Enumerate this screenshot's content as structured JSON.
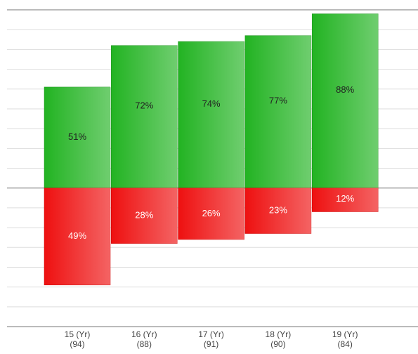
{
  "chart_data": {
    "type": "diverging-bar",
    "categories": [
      [
        "15 (Yr)",
        "(94)"
      ],
      [
        "16 (Yr)",
        "(88)"
      ],
      [
        "17 (Yr)",
        "(91)"
      ],
      [
        "18 (Yr)",
        "(90)"
      ],
      [
        "19 (Yr)",
        "(84)"
      ]
    ],
    "series": [
      {
        "color": "#22b322",
        "values": [
          51,
          72,
          74,
          77,
          88
        ],
        "value_labels": [
          "51%",
          "72%",
          "74%",
          "77%",
          "88%"
        ]
      },
      {
        "color": "#ee1010",
        "values": [
          49,
          28,
          26,
          23,
          12
        ],
        "value_labels": [
          "49%",
          "28%",
          "26%",
          "23%",
          "12%"
        ]
      }
    ],
    "ylim": [
      -70,
      90
    ],
    "yticks": [
      -70,
      -60,
      -50,
      -40,
      -30,
      -20,
      -10,
      0,
      10,
      20,
      30,
      40,
      50,
      60,
      70,
      80,
      90
    ],
    "grid": true
  }
}
